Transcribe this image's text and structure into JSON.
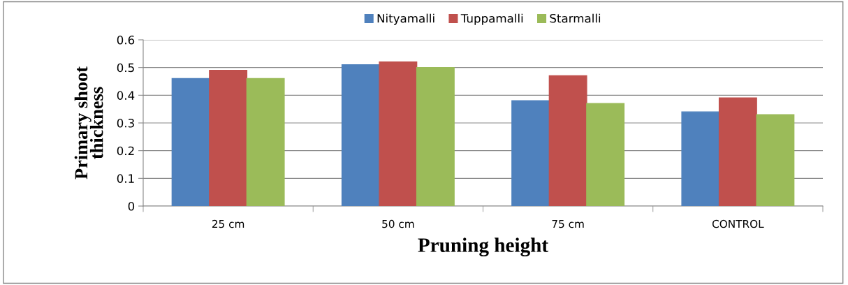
{
  "chart_data": {
    "type": "bar",
    "xlabel": "Pruning height",
    "ylabel": "Primary shoot\nthickness",
    "categories": [
      "25 cm",
      "50 cm",
      "75 cm",
      "CONTROL"
    ],
    "series": [
      {
        "name": "Nityamalli",
        "color": "#4f81bd",
        "values": [
          0.46,
          0.51,
          0.38,
          0.34
        ]
      },
      {
        "name": "Tuppamalli",
        "color": "#c0504d",
        "values": [
          0.49,
          0.52,
          0.47,
          0.39
        ]
      },
      {
        "name": "Starmalli",
        "color": "#9bbb59",
        "values": [
          0.46,
          0.5,
          0.37,
          0.33
        ]
      }
    ],
    "ylim": [
      0,
      0.6
    ],
    "yticks": [
      0,
      0.1,
      0.2,
      0.3,
      0.4,
      0.5,
      0.6
    ],
    "grid": "y",
    "legend": "top"
  }
}
